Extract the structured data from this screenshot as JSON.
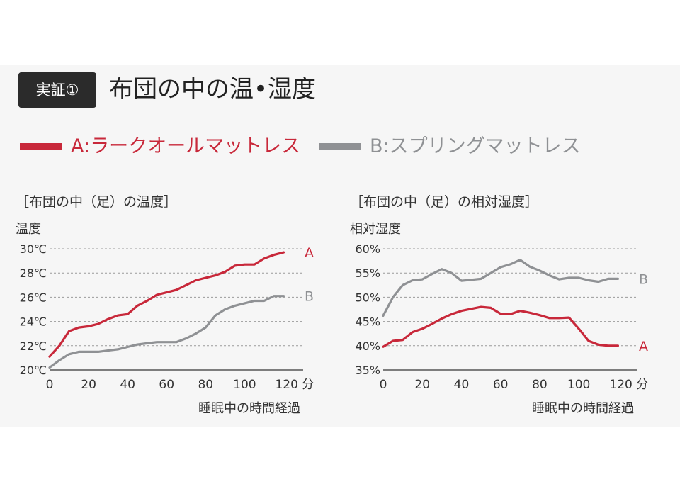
{
  "header": {
    "badge": "実証①",
    "title": "布団の中の温•湿度"
  },
  "legend": [
    {
      "key": "A",
      "label": "A:ラークオールマットレス",
      "color": "#c8283a"
    },
    {
      "key": "B",
      "label": "B:スプリングマットレス",
      "color": "#8f9194"
    }
  ],
  "chart_data": [
    {
      "type": "line",
      "title": "［布団の中（足）の温度］",
      "ylabel": "温度",
      "xlabel": "睡眠中の時間経過",
      "x_unit": "分",
      "x_ticks": [
        0,
        20,
        40,
        60,
        80,
        100,
        120
      ],
      "y_ticks": [
        "20℃",
        "22℃",
        "24℃",
        "26℃",
        "28℃",
        "30℃"
      ],
      "xlim": [
        0,
        130
      ],
      "ylim": [
        20,
        30
      ],
      "grid": true,
      "series": [
        {
          "name": "A",
          "color": "#c8283a",
          "x": [
            0,
            5,
            10,
            15,
            20,
            25,
            30,
            35,
            40,
            45,
            50,
            55,
            60,
            65,
            70,
            75,
            80,
            85,
            90,
            95,
            100,
            105,
            110,
            115,
            120
          ],
          "values": [
            21.1,
            22.0,
            23.2,
            23.5,
            23.6,
            23.8,
            24.2,
            24.5,
            24.6,
            25.3,
            25.7,
            26.2,
            26.4,
            26.6,
            27.0,
            27.4,
            27.6,
            27.8,
            28.1,
            28.6,
            28.7,
            28.7,
            29.2,
            29.5,
            29.7
          ]
        },
        {
          "name": "B",
          "color": "#8f9194",
          "x": [
            0,
            5,
            10,
            15,
            20,
            25,
            30,
            35,
            40,
            45,
            50,
            55,
            60,
            65,
            70,
            75,
            80,
            85,
            90,
            95,
            100,
            105,
            110,
            115,
            120
          ],
          "values": [
            20.2,
            20.8,
            21.3,
            21.5,
            21.5,
            21.5,
            21.6,
            21.7,
            21.9,
            22.1,
            22.2,
            22.3,
            22.3,
            22.3,
            22.6,
            23.0,
            23.5,
            24.5,
            25.0,
            25.3,
            25.5,
            25.7,
            25.7,
            26.1,
            26.1
          ]
        }
      ],
      "end_labels": [
        "A",
        "B"
      ]
    },
    {
      "type": "line",
      "title": "［布団の中（足）の相対湿度］",
      "ylabel": "相対湿度",
      "xlabel": "睡眠中の時間経過",
      "x_unit": "分",
      "x_ticks": [
        0,
        20,
        40,
        60,
        80,
        100,
        120
      ],
      "y_ticks": [
        "35%",
        "40%",
        "45%",
        "50%",
        "55%",
        "60%"
      ],
      "xlim": [
        0,
        130
      ],
      "ylim": [
        35,
        60
      ],
      "grid": true,
      "series": [
        {
          "name": "A",
          "color": "#c8283a",
          "x": [
            0,
            5,
            10,
            15,
            20,
            25,
            30,
            35,
            40,
            45,
            50,
            55,
            60,
            65,
            70,
            75,
            80,
            85,
            90,
            95,
            100,
            105,
            110,
            115,
            120
          ],
          "values": [
            39.8,
            41.0,
            41.2,
            42.8,
            43.5,
            44.5,
            45.6,
            46.5,
            47.2,
            47.6,
            48.0,
            47.8,
            46.6,
            46.5,
            47.2,
            46.8,
            46.3,
            45.7,
            45.7,
            45.8,
            43.5,
            41.0,
            40.2,
            40.0,
            40.0
          ]
        },
        {
          "name": "B",
          "color": "#8f9194",
          "x": [
            0,
            5,
            10,
            15,
            20,
            25,
            30,
            35,
            40,
            45,
            50,
            55,
            60,
            65,
            70,
            75,
            80,
            85,
            90,
            95,
            100,
            105,
            110,
            115,
            120
          ],
          "values": [
            46.2,
            50.0,
            52.5,
            53.5,
            53.7,
            54.8,
            55.8,
            55.0,
            53.4,
            53.6,
            53.8,
            55.0,
            56.2,
            56.8,
            57.7,
            56.3,
            55.5,
            54.5,
            53.7,
            54.0,
            54.0,
            53.5,
            53.2,
            53.8,
            53.8
          ]
        }
      ],
      "end_labels": [
        "B",
        "A"
      ]
    }
  ]
}
